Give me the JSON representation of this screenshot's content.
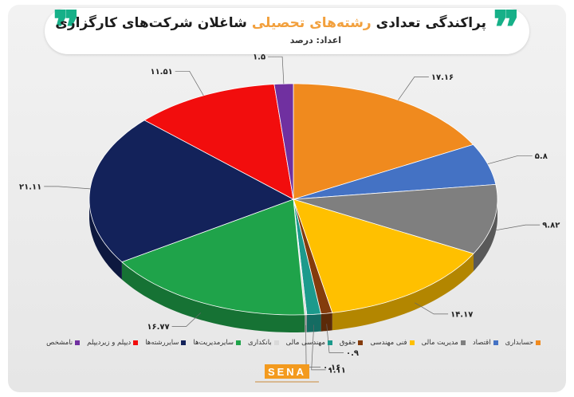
{
  "header": {
    "title_pre": "پراکندگی تعدادی ",
    "title_highlight": "رشته‌های تحصیلی",
    "title_post": " شاغلان شرکت‌های کارگزاری",
    "subtitle": "اعداد: درصد"
  },
  "chart_data": {
    "type": "pie",
    "title": "پراکندگی تعدادی رشته‌های تحصیلی شاغلان شرکت‌های کارگزاری",
    "unit": "درصد",
    "legend_position": "bottom",
    "slices": [
      {
        "label": "حسابداری",
        "value": 17.16,
        "display": "۱۷.۱۶",
        "color": "#f08a1e"
      },
      {
        "label": "اقتصاد",
        "value": 5.8,
        "display": "۵.۸",
        "color": "#4472c4"
      },
      {
        "label": "مدیریت مالی",
        "value": 9.82,
        "display": "۹.۸۲",
        "color": "#7f7f7f"
      },
      {
        "label": "فنی مهندسی",
        "value": 14.17,
        "display": "۱۴.۱۷",
        "color": "#ffc000"
      },
      {
        "label": "حقوق",
        "value": 0.9,
        "display": "۰.۹",
        "color": "#843c0c"
      },
      {
        "label": "مهندسی مالی",
        "value": 1.11,
        "display": "۱.۱۱",
        "color": "#1c9a8c"
      },
      {
        "label": "بانکداری",
        "value": 0.16,
        "display": "۰.۱۶",
        "color": "#d9d9d9"
      },
      {
        "label": "سایرمدیریت‌ها",
        "value": 16.77,
        "display": "۱۶.۷۷",
        "color": "#1fa34a"
      },
      {
        "label": "سایررشته‌ها",
        "value": 21.11,
        "display": "۲۱.۱۱",
        "color": "#13225a"
      },
      {
        "label": "دیپلم و زیردیپلم",
        "value": 11.51,
        "display": "۱۱.۵۱",
        "color": "#f20d0d"
      },
      {
        "label": "نامشخص",
        "value": 1.5,
        "display": "۱.۵",
        "color": "#7030a0"
      }
    ]
  },
  "footer": {
    "logo_text": "SENA"
  }
}
